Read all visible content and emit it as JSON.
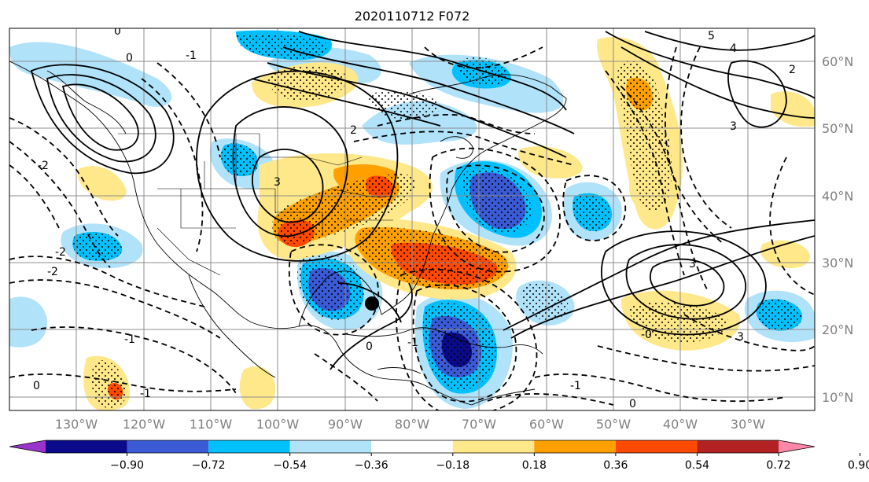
{
  "title": "2020110712 F072",
  "lat_labels": [
    "60°N",
    "50°N",
    "40°N",
    "30°N",
    "20°N",
    "10°N"
  ],
  "lon_labels": [
    "130°W",
    "120°W",
    "110°W",
    "100°W",
    "90°W",
    "80°W",
    "70°W",
    "60°W",
    "50°W",
    "40°W",
    "30°W"
  ],
  "colorbar": {
    "ticks": [
      "−0.90",
      "−0.72",
      "−0.54",
      "−0.36",
      "−0.18",
      "0.18",
      "0.36",
      "0.54",
      "0.72",
      "0.90"
    ],
    "colors": [
      "#9933cc",
      "#0a0a8a",
      "#3a5ad6",
      "#00c0ff",
      "#b0e2fa",
      "#ffffff",
      "#ffe88a",
      "#ffa000",
      "#ff4800",
      "#b22222",
      "#ff88aa"
    ]
  },
  "contour_labels": [
    "0",
    "-1",
    "0",
    "-2",
    "2",
    "3",
    "5",
    "4",
    "2",
    "3",
    "-1",
    "-2",
    "-1",
    "-2",
    "0",
    "0",
    "3",
    "-1",
    "0",
    "-1",
    "-0",
    "3"
  ],
  "colors": {
    "marker": "#000000",
    "grid": "#8c8c8c",
    "frame": "#000000"
  }
}
